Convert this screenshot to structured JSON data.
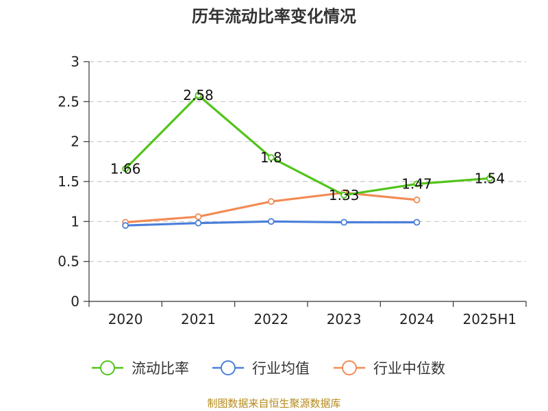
{
  "header": {
    "title": "历年流动比率变化情况"
  },
  "footer": {
    "source": "制图数据来自恒生聚源数据库"
  },
  "chart_data": {
    "type": "line",
    "title": "历年流动比率变化情况",
    "xlabel": "",
    "ylabel": "",
    "ylim": [
      0,
      3
    ],
    "yticks": [
      "0",
      "0.5",
      "1",
      "1.5",
      "2",
      "2.5",
      "3"
    ],
    "categories": [
      "2020",
      "2021",
      "2022",
      "2023",
      "2024",
      "2025H1"
    ],
    "grid": true,
    "legend": "bottom",
    "series": [
      {
        "name": "流动比率",
        "color": "#52c41a",
        "values": [
          1.66,
          2.58,
          1.8,
          1.33,
          1.47,
          1.54
        ],
        "labels": [
          "1.66",
          "2.58",
          "1.8",
          "1.33",
          "1.47",
          "1.54"
        ]
      },
      {
        "name": "行业均值",
        "color": "#4a7fd9",
        "values": [
          0.95,
          0.98,
          1.0,
          0.99,
          0.99,
          null
        ]
      },
      {
        "name": "行业中位数",
        "color": "#f28b54",
        "values": [
          0.99,
          1.06,
          1.25,
          1.36,
          1.27,
          null
        ]
      }
    ]
  }
}
